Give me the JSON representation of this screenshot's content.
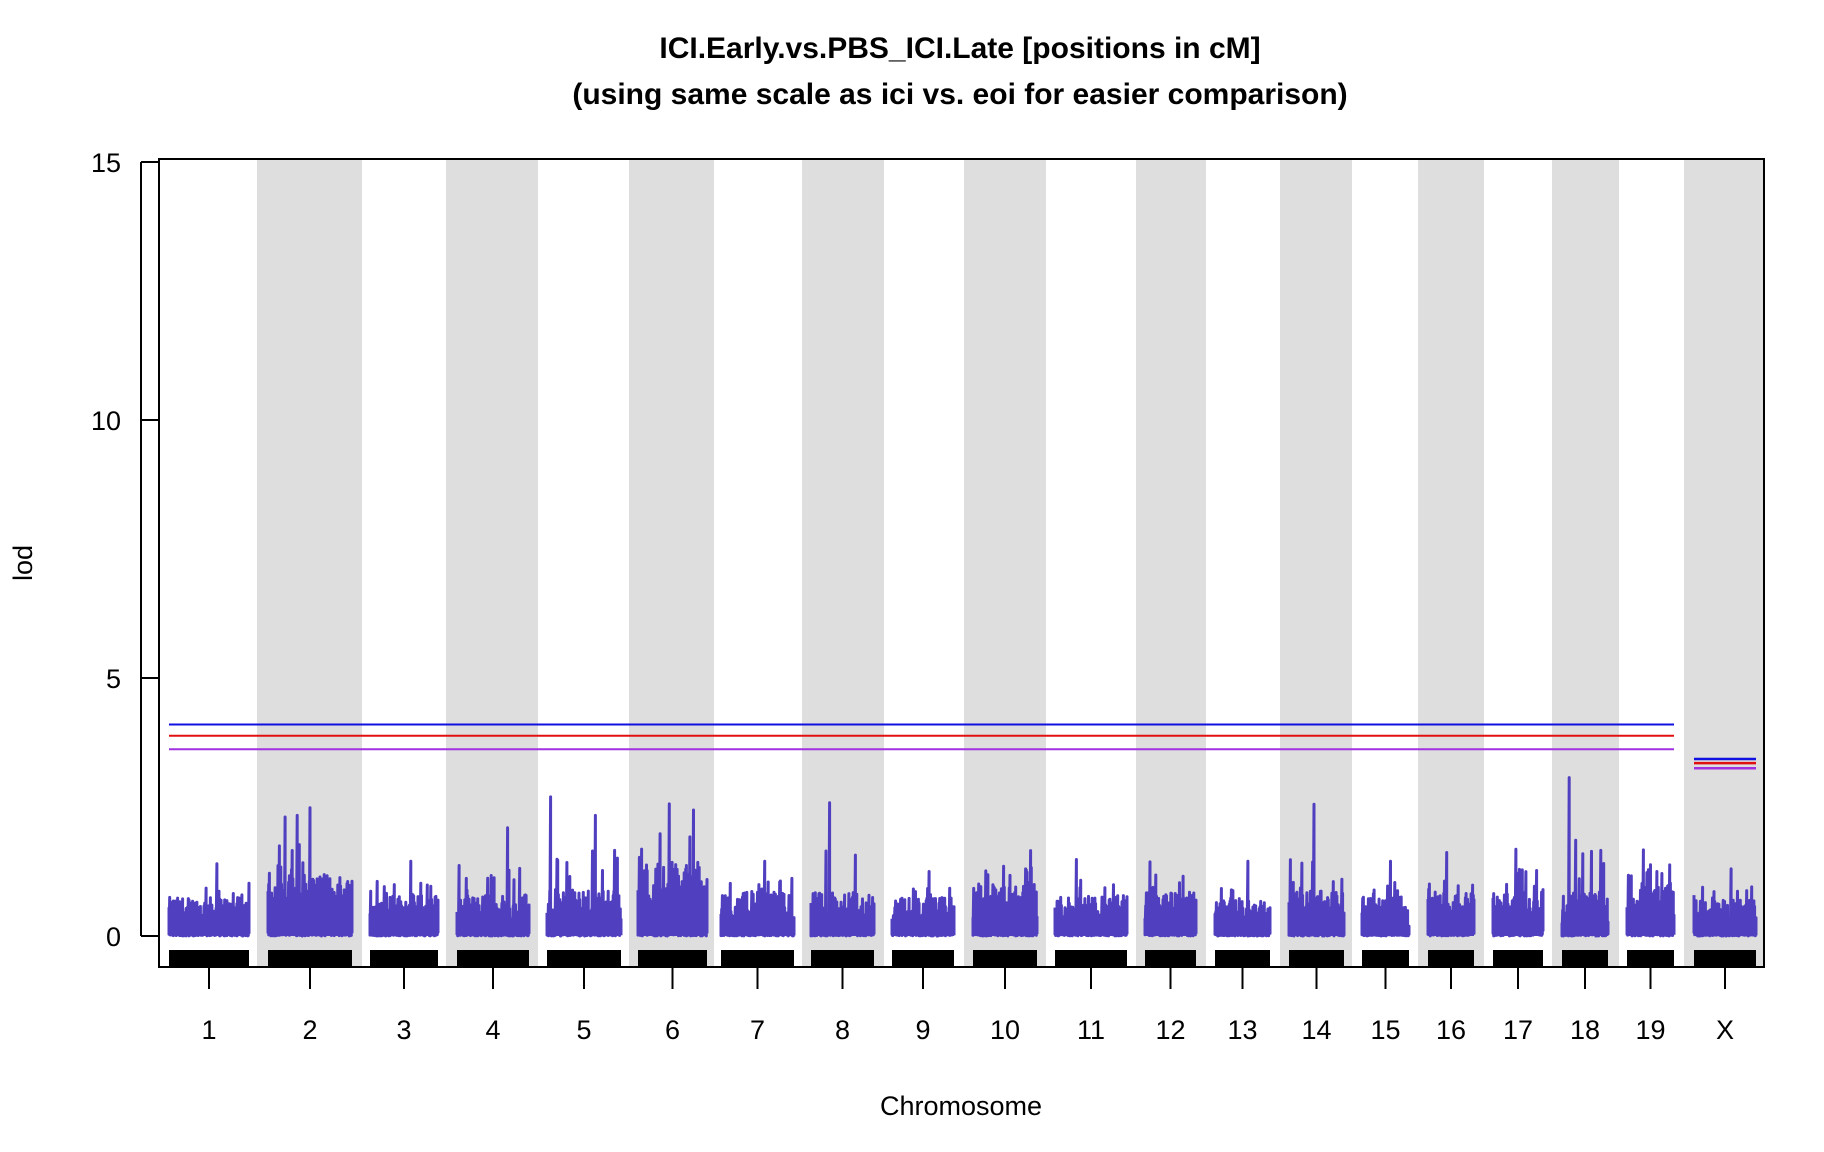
{
  "chart_data": {
    "type": "line",
    "title": "ICI.Early.vs.PBS_ICI.Late [positions in cM]",
    "subtitle": "(using same scale as ici vs. eoi for easier comparison)",
    "xlabel": "Chromosome",
    "ylabel": "lod",
    "ylim": [
      0,
      15
    ],
    "yticks": [
      0,
      5,
      10,
      15
    ],
    "grid": false,
    "alternating_shaded_bands": true,
    "colors": {
      "series": "#5040C0",
      "band": "#DEDEDE",
      "marker_rug": "#000000",
      "threshold_blue": "#1010E0",
      "threshold_red": "#E01010",
      "threshold_purple": "#A030E0"
    },
    "chromosomes": [
      {
        "name": "1",
        "base": 0.75,
        "max_lod": 1.4,
        "peaks": []
      },
      {
        "name": "2",
        "base": 1.2,
        "max_lod": 2.55,
        "peaks": [
          0.2,
          0.35,
          0.5
        ]
      },
      {
        "name": "3",
        "base": 0.8,
        "max_lod": 1.45,
        "peaks": []
      },
      {
        "name": "4",
        "base": 0.8,
        "max_lod": 2.15,
        "peaks": [
          0.7
        ]
      },
      {
        "name": "5",
        "base": 0.9,
        "max_lod": 2.7,
        "peaks": [
          0.05,
          0.65
        ]
      },
      {
        "name": "6",
        "base": 1.45,
        "max_lod": 2.65,
        "peaks": [
          0.45,
          0.8
        ]
      },
      {
        "name": "7",
        "base": 0.85,
        "max_lod": 1.45,
        "peaks": []
      },
      {
        "name": "8",
        "base": 0.85,
        "max_lod": 2.7,
        "peaks": [
          0.3
        ]
      },
      {
        "name": "9",
        "base": 0.75,
        "max_lod": 1.25,
        "peaks": []
      },
      {
        "name": "10",
        "base": 1.0,
        "max_lod": 1.8,
        "peaks": [
          0.9
        ]
      },
      {
        "name": "11",
        "base": 0.8,
        "max_lod": 1.7,
        "peaks": [
          0.3
        ]
      },
      {
        "name": "12",
        "base": 0.85,
        "max_lod": 1.6,
        "peaks": [
          0.1
        ]
      },
      {
        "name": "13",
        "base": 0.7,
        "max_lod": 1.45,
        "peaks": []
      },
      {
        "name": "14",
        "base": 0.9,
        "max_lod": 2.7,
        "peaks": [
          0.45
        ]
      },
      {
        "name": "15",
        "base": 0.75,
        "max_lod": 1.45,
        "peaks": []
      },
      {
        "name": "16",
        "base": 0.85,
        "max_lod": 1.65,
        "peaks": [
          0.4
        ]
      },
      {
        "name": "17",
        "base": 0.9,
        "max_lod": 1.9,
        "peaks": [
          0.45
        ]
      },
      {
        "name": "18",
        "base": 0.85,
        "max_lod": 3.15,
        "peaks": [
          0.15
        ]
      },
      {
        "name": "19",
        "base": 1.05,
        "max_lod": 1.8,
        "peaks": [
          0.35
        ]
      },
      {
        "name": "X",
        "base": 0.7,
        "max_lod": 1.3,
        "peaks": []
      }
    ],
    "thresholds": {
      "autosomes": {
        "blue": 4.1,
        "red": 3.88,
        "purple": 3.62
      },
      "X": {
        "blue": 3.43,
        "red": 3.35,
        "purple": 3.25
      }
    }
  }
}
